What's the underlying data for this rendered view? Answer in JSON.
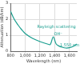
{
  "chart_data": {
    "type": "line",
    "x_label": "Wavelength (nm)",
    "y_label": "Attenuation (dB/km)",
    "x": [
      800,
      850,
      900,
      950,
      1000,
      1100,
      1200,
      1300,
      1340,
      1380,
      1420,
      1460,
      1500,
      1550,
      1600,
      1650,
      1700
    ],
    "series": [
      {
        "name": "Attenuation",
        "color": "#1a9e8f",
        "values": [
          2.5,
          2.0,
          1.65,
          1.35,
          1.1,
          0.8,
          0.6,
          0.45,
          0.42,
          0.9,
          0.45,
          0.32,
          0.25,
          0.2,
          0.22,
          0.3,
          0.45
        ]
      }
    ],
    "xlim": [
      800,
      1700
    ],
    "xticks": [
      800,
      {
        "value": 1000,
        "label": "1,000"
      },
      {
        "value": 1200,
        "label": "1,200"
      },
      {
        "value": 1400,
        "label": "1,400"
      },
      {
        "value": 1600,
        "label": "1,600"
      }
    ],
    "ylim": [
      0,
      3
    ],
    "yticks": [
      0,
      1,
      2,
      3
    ],
    "grid": true,
    "annotations": [
      {
        "text": "Rayleigh scattering",
        "x": 1150,
        "y": 1.35
      },
      {
        "text": "OH⁻",
        "x": 1380,
        "y": 0.9
      },
      {
        "text": "1,550 nm",
        "x": 1550,
        "y": 0.2
      }
    ]
  }
}
